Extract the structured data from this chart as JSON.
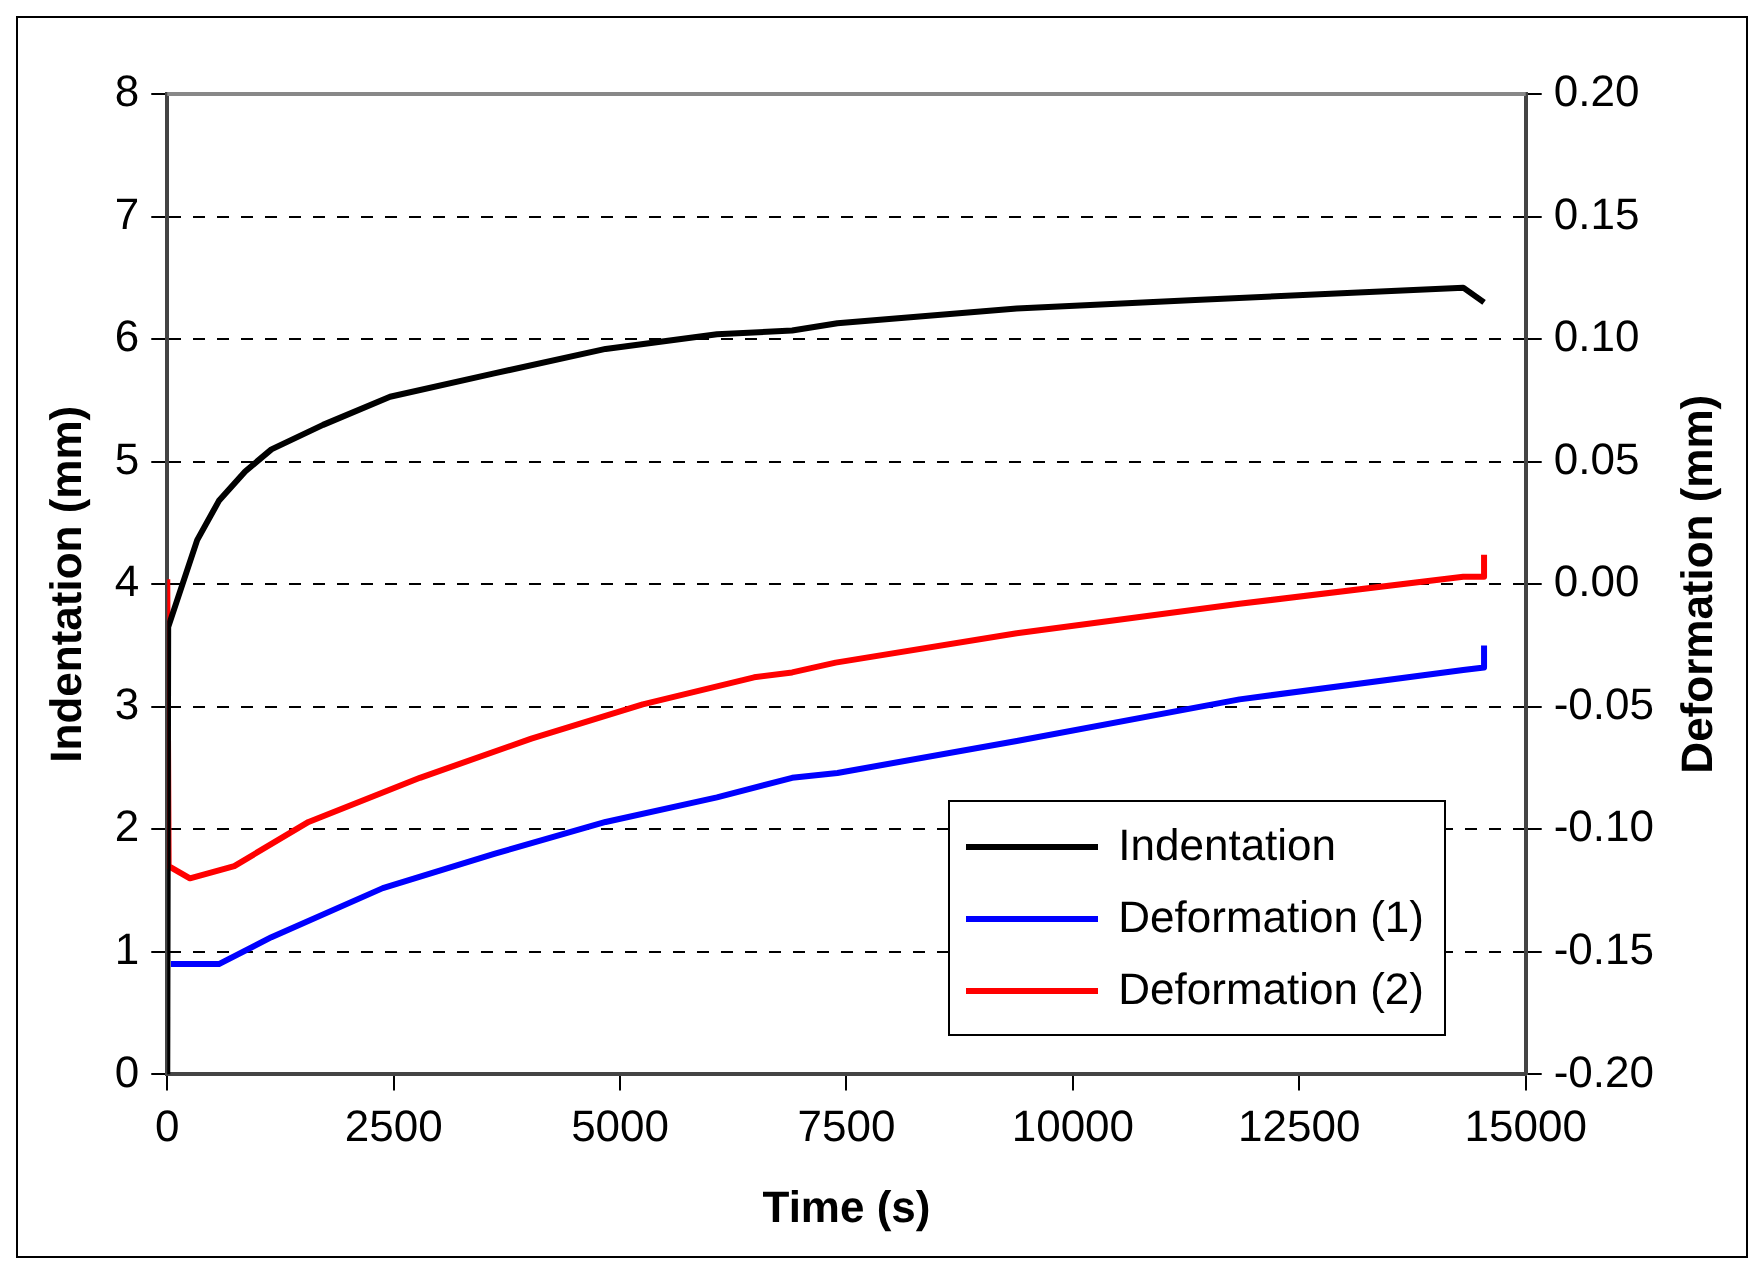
{
  "chart_data": {
    "type": "line",
    "xlabel": "Time (s)",
    "ylabel": "Indentation (mm)",
    "y2label": "Deformation (mm)",
    "xlim": [
      0,
      15000
    ],
    "xticks": [
      0,
      2500,
      5000,
      7500,
      10000,
      12500,
      15000
    ],
    "ylim": [
      0,
      8
    ],
    "yticks": [
      0,
      1,
      2,
      3,
      4,
      5,
      6,
      7,
      8
    ],
    "y2lim": [
      -0.2,
      0.2
    ],
    "y2ticks": [
      {
        "value": -0.2,
        "label": "-0.20"
      },
      {
        "value": -0.15,
        "label": "-0.15"
      },
      {
        "value": -0.1,
        "label": "-0.10"
      },
      {
        "value": -0.05,
        "label": "-0.05"
      },
      {
        "value": 0,
        "label": "0.00"
      },
      {
        "value": 0.05,
        "label": "0.05"
      },
      {
        "value": 0.1,
        "label": "0.10"
      },
      {
        "value": 0.15,
        "label": "0.15"
      },
      {
        "value": 0.2,
        "label": "0.20"
      }
    ],
    "grid": "y",
    "legend": "bottom right",
    "marker": "none",
    "line_style": "solid",
    "series": [
      {
        "name": "Indentation",
        "color": "#000000",
        "x": [
          0,
          10,
          330,
          570,
          860,
          1150,
          1720,
          2460,
          3610,
          4840,
          6070,
          6900,
          7400,
          9380,
          11350,
          13150,
          14310,
          14540
        ],
        "values": [
          0,
          3.65,
          4.36,
          4.68,
          4.92,
          5.1,
          5.3,
          5.53,
          5.72,
          5.92,
          6.04,
          6.07,
          6.13,
          6.25,
          6.32,
          6.38,
          6.42,
          6.3
        ]
      },
      {
        "name": "Deformation (1)",
        "color": "#0000ff",
        "axis": "y2",
        "x": [
          40,
          570,
          1150,
          2380,
          3610,
          4840,
          6070,
          6900,
          7400,
          9380,
          11840,
          14310,
          14540,
          14540
        ],
        "values": [
          -0.155,
          -0.155,
          -0.144,
          -0.124,
          -0.11,
          -0.097,
          -0.087,
          -0.079,
          -0.077,
          -0.064,
          -0.047,
          -0.035,
          -0.034,
          -0.025
        ]
      },
      {
        "name": "Deformation (2)",
        "color": "#ff0000",
        "axis": "y2",
        "x": [
          0,
          15,
          250,
          740,
          1560,
          2790,
          4020,
          5250,
          6480,
          6900,
          7380,
          9380,
          11840,
          14310,
          14540,
          14540
        ],
        "values": [
          0.002,
          -0.115,
          -0.12,
          -0.115,
          -0.097,
          -0.079,
          -0.063,
          -0.049,
          -0.038,
          -0.036,
          -0.032,
          -0.02,
          -0.008,
          0.003,
          0.003,
          0.012
        ]
      }
    ]
  }
}
